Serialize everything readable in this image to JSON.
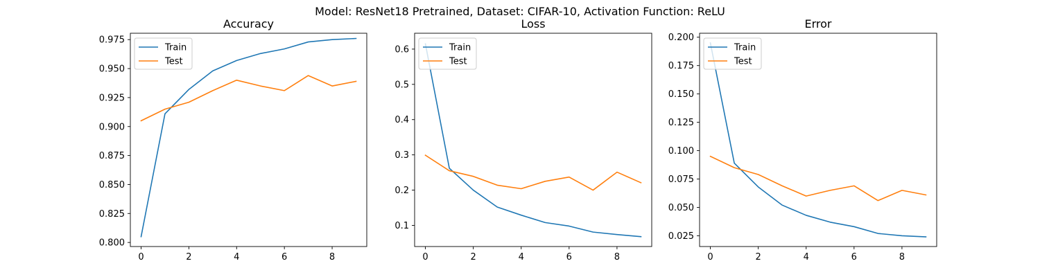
{
  "figure": {
    "suptitle": "Model: ResNet18 Pretrained, Dataset: CIFAR-10, Activation Function: ReLU"
  },
  "colors": {
    "train": "#1f77b4",
    "test": "#ff7f0e"
  },
  "chart_data": [
    {
      "type": "line",
      "title": "Accuracy",
      "xlabel": "",
      "ylabel": "",
      "x": [
        0,
        1,
        2,
        3,
        4,
        5,
        6,
        7,
        8,
        9
      ],
      "xlim": [
        -0.45,
        9.45
      ],
      "ylim": [
        0.7965,
        0.9805
      ],
      "xticks": [
        0,
        2,
        4,
        6,
        8
      ],
      "yticks": [
        0.8,
        0.825,
        0.85,
        0.875,
        0.9,
        0.925,
        0.95,
        0.975
      ],
      "ytick_labels": [
        "0.800",
        "0.825",
        "0.850",
        "0.875",
        "0.900",
        "0.925",
        "0.950",
        "0.975"
      ],
      "grid": false,
      "legend": "upper-left",
      "series": [
        {
          "name": "Train",
          "values": [
            0.805,
            0.911,
            0.932,
            0.948,
            0.957,
            0.963,
            0.967,
            0.973,
            0.975,
            0.976
          ]
        },
        {
          "name": "Test",
          "values": [
            0.905,
            0.915,
            0.921,
            0.931,
            0.94,
            0.935,
            0.931,
            0.944,
            0.935,
            0.939
          ]
        }
      ]
    },
    {
      "type": "line",
      "title": "Loss",
      "xlabel": "",
      "ylabel": "",
      "x": [
        0,
        1,
        2,
        3,
        4,
        5,
        6,
        7,
        8,
        9
      ],
      "xlim": [
        -0.45,
        9.45
      ],
      "ylim": [
        0.04,
        0.645
      ],
      "xticks": [
        0,
        2,
        4,
        6,
        8
      ],
      "yticks": [
        0.1,
        0.2,
        0.3,
        0.4,
        0.5,
        0.6
      ],
      "ytick_labels": [
        "0.1",
        "0.2",
        "0.3",
        "0.4",
        "0.5",
        "0.6"
      ],
      "grid": false,
      "legend": "upper-left",
      "series": [
        {
          "name": "Train",
          "values": [
            0.615,
            0.262,
            0.2,
            0.152,
            0.129,
            0.108,
            0.098,
            0.081,
            0.074,
            0.068
          ]
        },
        {
          "name": "Test",
          "values": [
            0.299,
            0.255,
            0.239,
            0.214,
            0.204,
            0.225,
            0.237,
            0.2,
            0.251,
            0.221
          ]
        }
      ]
    },
    {
      "type": "line",
      "title": "Error",
      "xlabel": "",
      "ylabel": "",
      "x": [
        0,
        1,
        2,
        3,
        4,
        5,
        6,
        7,
        8,
        9
      ],
      "xlim": [
        -0.45,
        9.45
      ],
      "ylim": [
        0.0155,
        0.2035
      ],
      "xticks": [
        0,
        2,
        4,
        6,
        8
      ],
      "yticks": [
        0.025,
        0.05,
        0.075,
        0.1,
        0.125,
        0.15,
        0.175,
        0.2
      ],
      "ytick_labels": [
        "0.025",
        "0.050",
        "0.075",
        "0.100",
        "0.125",
        "0.150",
        "0.175",
        "0.200"
      ],
      "grid": false,
      "legend": "upper-left",
      "series": [
        {
          "name": "Train",
          "values": [
            0.195,
            0.089,
            0.068,
            0.052,
            0.043,
            0.037,
            0.033,
            0.027,
            0.025,
            0.024
          ]
        },
        {
          "name": "Test",
          "values": [
            0.095,
            0.085,
            0.079,
            0.069,
            0.06,
            0.065,
            0.069,
            0.056,
            0.065,
            0.061
          ]
        }
      ]
    }
  ]
}
